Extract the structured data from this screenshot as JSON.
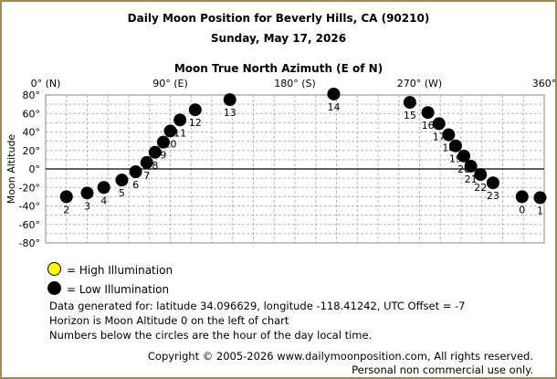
{
  "header": {
    "title": "Daily Moon Position for Beverly Hills, CA (90210)",
    "date": "Sunday, May 17, 2026",
    "axis_title": "Moon True North Azimuth (E of N)"
  },
  "chart_data": {
    "type": "scatter",
    "title": "Daily Moon Position for Beverly Hills, CA (90210)",
    "subtitle": "Sunday, May 17, 2026",
    "xlabel": "Moon True North Azimuth (E of N)",
    "ylabel": "Moon Altitude",
    "xlim": [
      0,
      360
    ],
    "ylim": [
      -80,
      80
    ],
    "x_ticks": [
      {
        "value": 0,
        "label": "0° (N)"
      },
      {
        "value": 90,
        "label": "90° (E)"
      },
      {
        "value": 180,
        "label": "180° (S)"
      },
      {
        "value": 270,
        "label": "270° (W)"
      },
      {
        "value": 360,
        "label": "360°"
      }
    ],
    "y_ticks": [
      {
        "value": 80,
        "label": "80°"
      },
      {
        "value": 60,
        "label": "60°"
      },
      {
        "value": 40,
        "label": "40°"
      },
      {
        "value": 20,
        "label": "20°"
      },
      {
        "value": 0,
        "label": "0°"
      },
      {
        "value": -20,
        "label": "-20°"
      },
      {
        "value": -40,
        "label": "-40°"
      },
      {
        "value": -60,
        "label": "-60°"
      },
      {
        "value": -80,
        "label": "-80°"
      }
    ],
    "grid": true,
    "horizon_altitude": 0,
    "series": [
      {
        "name": "Low Illumination",
        "color": "#000000",
        "points": [
          {
            "hour": "0",
            "x": 344,
            "y": -30
          },
          {
            "hour": "1",
            "x": 357,
            "y": -31
          },
          {
            "hour": "2",
            "x": 15,
            "y": -30
          },
          {
            "hour": "3",
            "x": 30,
            "y": -26
          },
          {
            "hour": "4",
            "x": 42,
            "y": -20
          },
          {
            "hour": "5",
            "x": 55,
            "y": -12
          },
          {
            "hour": "6",
            "x": 65,
            "y": -3
          },
          {
            "hour": "7",
            "x": 73,
            "y": 7
          },
          {
            "hour": "8",
            "x": 79,
            "y": 18
          },
          {
            "hour": "9",
            "x": 85,
            "y": 29
          },
          {
            "hour": "10",
            "x": 90,
            "y": 41
          },
          {
            "hour": "11",
            "x": 97,
            "y": 53
          },
          {
            "hour": "12",
            "x": 108,
            "y": 64
          },
          {
            "hour": "13",
            "x": 133,
            "y": 75
          },
          {
            "hour": "14",
            "x": 208,
            "y": 81
          },
          {
            "hour": "15",
            "x": 263,
            "y": 72
          },
          {
            "hour": "16",
            "x": 276,
            "y": 61
          },
          {
            "hour": "17",
            "x": 284,
            "y": 49
          },
          {
            "hour": "18",
            "x": 291,
            "y": 37
          },
          {
            "hour": "19",
            "x": 296,
            "y": 25
          },
          {
            "hour": "20",
            "x": 302,
            "y": 14
          },
          {
            "hour": "21",
            "x": 307,
            "y": 3
          },
          {
            "hour": "22",
            "x": 314,
            "y": -6
          },
          {
            "hour": "23",
            "x": 323,
            "y": -15
          }
        ]
      }
    ]
  },
  "legend": {
    "high": "= High Illumination",
    "low": "= Low Illumination",
    "high_color": "#ffff00",
    "low_color": "#000000"
  },
  "info": {
    "line1": "Data generated for: latitude 34.096629, longitude -118.41242, UTC Offset = -7",
    "line2": "Horizon is Moon Altitude 0 on the left of chart",
    "line3": "Numbers below the circles are the hour of the day local time."
  },
  "footer": {
    "copyright": "Copyright © 2005-2026 www.dailymoonposition.com, All rights reserved.",
    "usage": "Personal non commercial use only."
  }
}
